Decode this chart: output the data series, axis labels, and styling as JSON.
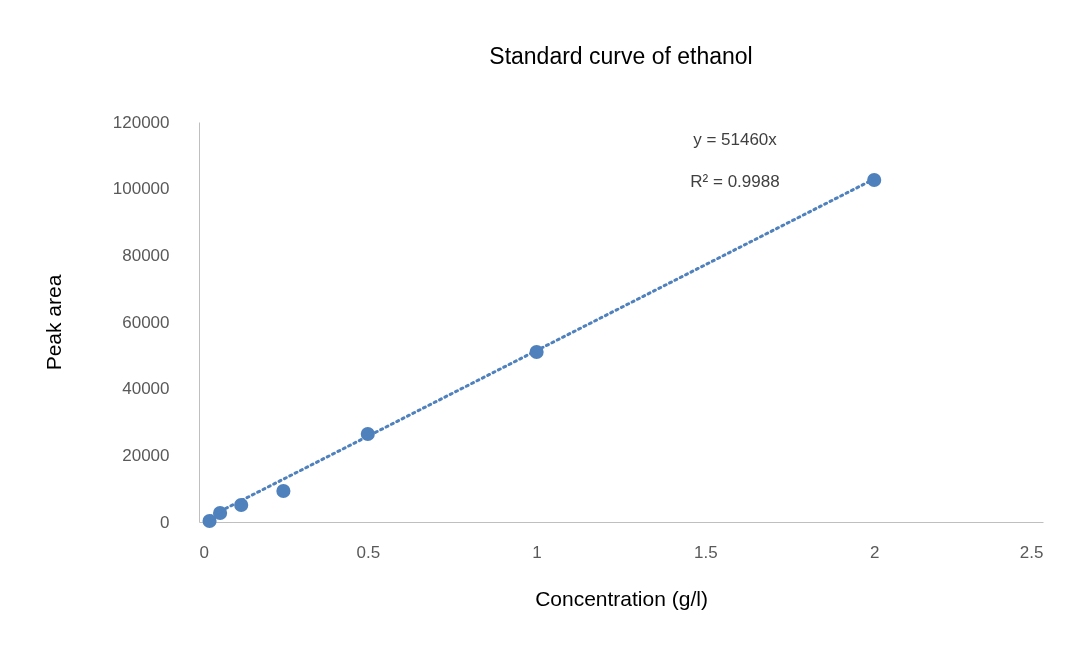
{
  "chart_data": {
    "type": "scatter",
    "title": "Standard curve of ethanol",
    "xlabel": "Concentration (g/l)",
    "ylabel": "Peak area",
    "xlim": [
      0,
      2.5
    ],
    "xticks": [
      0,
      0.5,
      1,
      1.5,
      2,
      2.5
    ],
    "ylim": [
      0,
      120000
    ],
    "yticks": [
      0,
      20000,
      40000,
      60000,
      80000,
      100000,
      120000
    ],
    "grid": false,
    "annotations": [
      "y = 51460x",
      "R² = 0.9988"
    ],
    "series": [
      {
        "marker": "circle",
        "color": "#4f81bd",
        "x": [
          0.03125,
          0.0625,
          0.125,
          0.25,
          0.5,
          1,
          2
        ],
        "values": [
          300,
          2700,
          5100,
          9300,
          26400,
          51000,
          102600
        ]
      },
      {
        "type": "line",
        "line_style": "dotted",
        "marker": "none",
        "color": "#4f81bd",
        "x": [
          0.03125,
          2
        ],
        "values": [
          1600,
          102900
        ]
      }
    ]
  }
}
